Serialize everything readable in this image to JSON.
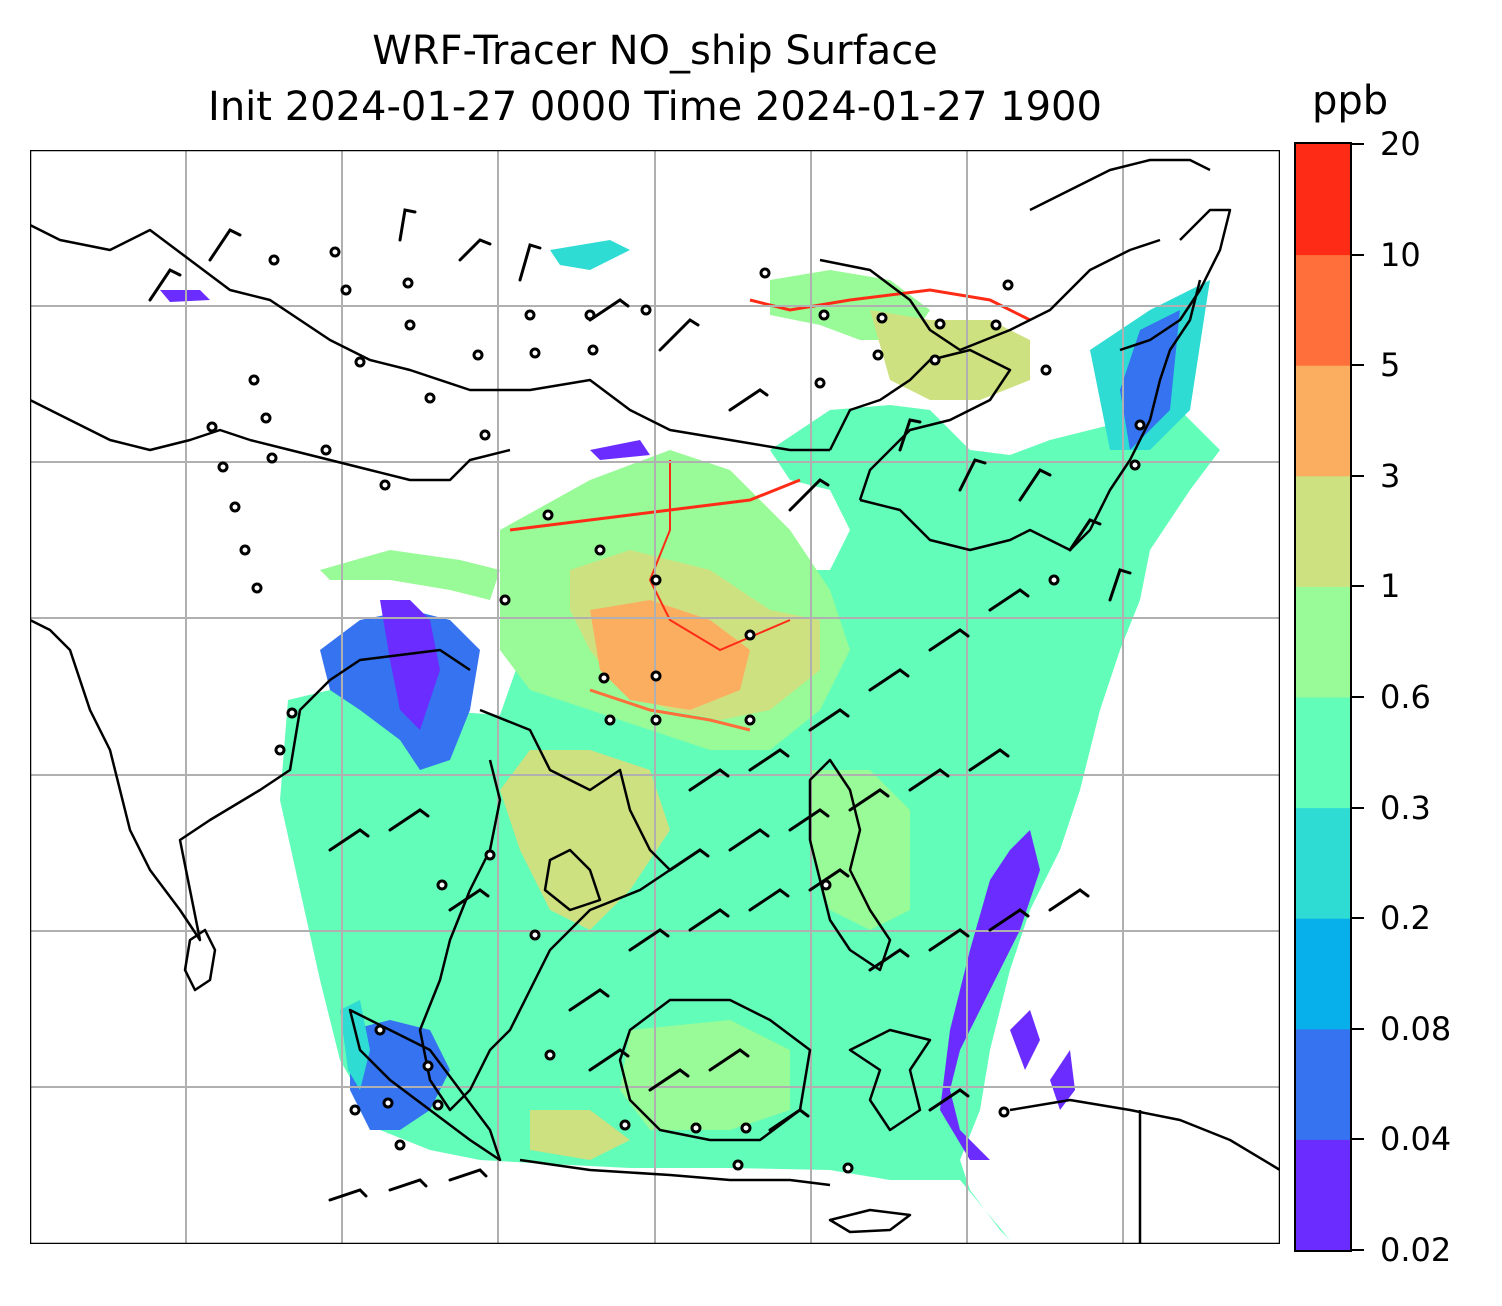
{
  "title": {
    "line1": "WRF-Tracer NO_ship Surface",
    "line2": "Init 2024-01-27 0000 Time 2024-01-27 1900"
  },
  "colorbar": {
    "unit": "ppb",
    "levels": [
      "0.02",
      "0.04",
      "0.08",
      "0.2",
      "0.3",
      "0.6",
      "1",
      "3",
      "5",
      "10",
      "20"
    ],
    "colors": [
      "#6a2cff",
      "#3573f0",
      "#07b0ea",
      "#2fdcd4",
      "#62fdb9",
      "#98fb97",
      "#cde180",
      "#fbae60",
      "#fe6f3b",
      "#fe2c17"
    ]
  },
  "map": {
    "coastline_color": "#000000",
    "grid_color": "#b0b0b0",
    "wind_barb_color": "#000000"
  }
}
